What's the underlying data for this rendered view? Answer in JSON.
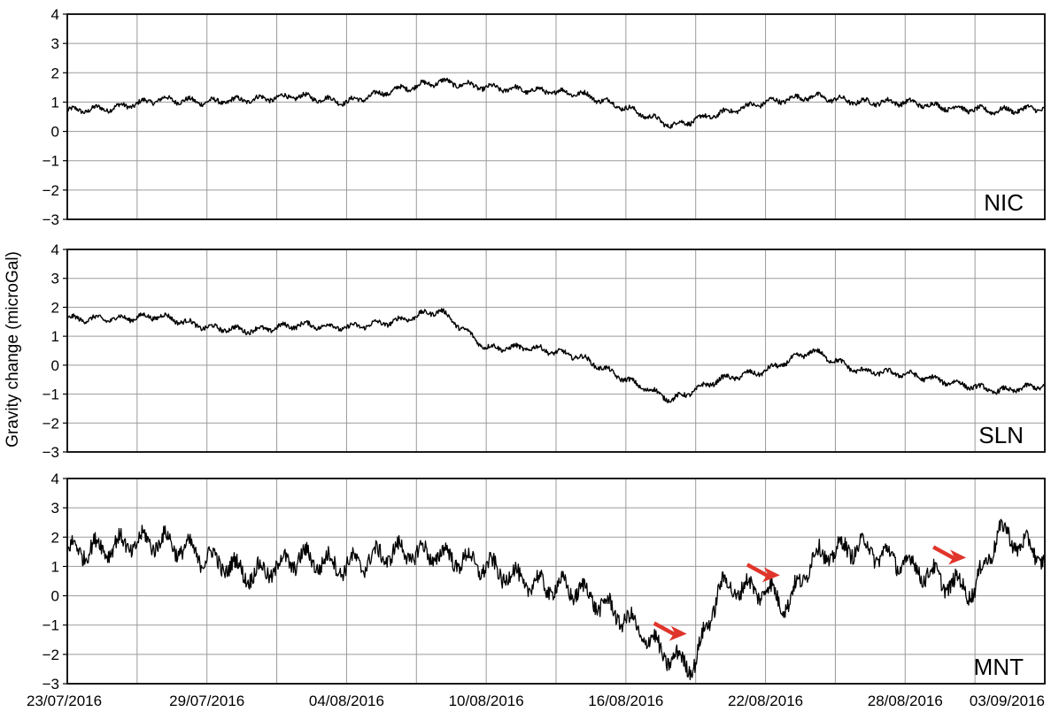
{
  "chart_data": {
    "type": "line",
    "ylabel": "Gravity change (microGal)",
    "x_tick_labels": [
      "23/07/2016",
      "29/07/2016",
      "04/08/2016",
      "10/08/2016",
      "16/08/2016",
      "22/08/2016",
      "28/08/2016",
      "03/09/2016"
    ],
    "x_tick_dates": [
      "2016-07-23",
      "2016-07-29",
      "2016-08-04",
      "2016-08-10",
      "2016-08-16",
      "2016-08-22",
      "2016-08-28",
      "2016-09-03"
    ],
    "xlim": [
      "2016-07-23",
      "2016-09-03"
    ],
    "ylim": [
      -3,
      4
    ],
    "yticks": [
      -3,
      -2,
      -1,
      0,
      1,
      2,
      3,
      4
    ],
    "grid": true,
    "colors": {
      "line": "#000000",
      "grid": "#9a9a9a",
      "arrow": "#e0352b"
    },
    "panels": [
      {
        "label": "NIC",
        "noise": 0.1,
        "series": {
          "x": [
            "2016-07-23",
            "2016-07-25",
            "2016-07-27",
            "2016-07-29",
            "2016-07-31",
            "2016-08-02",
            "2016-08-04",
            "2016-08-06",
            "2016-08-08",
            "2016-08-10",
            "2016-08-12",
            "2016-08-14",
            "2016-08-16",
            "2016-08-18",
            "2016-08-20",
            "2016-08-22",
            "2016-08-24",
            "2016-08-26",
            "2016-08-28",
            "2016-08-30",
            "2016-09-01",
            "2016-09-03"
          ],
          "y": [
            0.7,
            0.8,
            1.1,
            1.0,
            1.1,
            1.2,
            1.0,
            1.4,
            1.7,
            1.5,
            1.4,
            1.3,
            0.8,
            0.2,
            0.6,
            1.0,
            1.2,
            1.0,
            1.0,
            0.8,
            0.7,
            0.8
          ]
        }
      },
      {
        "label": "SLN",
        "noise": 0.1,
        "series": {
          "x": [
            "2016-07-23",
            "2016-07-25",
            "2016-07-27",
            "2016-07-29",
            "2016-07-31",
            "2016-08-02",
            "2016-08-04",
            "2016-08-06",
            "2016-08-08",
            "2016-08-10",
            "2016-08-12",
            "2016-08-14",
            "2016-08-16",
            "2016-08-18",
            "2016-08-20",
            "2016-08-22",
            "2016-08-24",
            "2016-08-26",
            "2016-08-28",
            "2016-08-30",
            "2016-09-01",
            "2016-09-03"
          ],
          "y": [
            1.6,
            1.6,
            1.7,
            1.3,
            1.2,
            1.4,
            1.3,
            1.5,
            1.9,
            0.6,
            0.6,
            0.3,
            -0.5,
            -1.2,
            -0.5,
            -0.2,
            0.5,
            -0.2,
            -0.3,
            -0.6,
            -0.9,
            -0.7
          ]
        }
      },
      {
        "label": "MNT",
        "noise": 0.35,
        "series": {
          "x": [
            "2016-07-23",
            "2016-07-25",
            "2016-07-27",
            "2016-07-29",
            "2016-07-31",
            "2016-08-02",
            "2016-08-04",
            "2016-08-06",
            "2016-08-08",
            "2016-08-10",
            "2016-08-12",
            "2016-08-14",
            "2016-08-16",
            "2016-08-18",
            "2016-08-19",
            "2016-08-20",
            "2016-08-22",
            "2016-08-23",
            "2016-08-24",
            "2016-08-26",
            "2016-08-28",
            "2016-08-30",
            "2016-08-31",
            "2016-09-01",
            "2016-09-03"
          ],
          "y": [
            1.5,
            1.7,
            1.9,
            1.3,
            0.7,
            1.3,
            1.0,
            1.5,
            1.4,
            1.0,
            0.4,
            0.2,
            -0.8,
            -2.2,
            -2.3,
            0.3,
            0.2,
            -0.3,
            1.3,
            1.7,
            1.1,
            0.4,
            0.2,
            2.2,
            1.3
          ]
        },
        "arrows": [
          {
            "x": "2016-08-19",
            "y": -1.3
          },
          {
            "x": "2016-08-23",
            "y": 0.7
          },
          {
            "x": "2016-08-31",
            "y": 1.3
          }
        ]
      }
    ]
  }
}
